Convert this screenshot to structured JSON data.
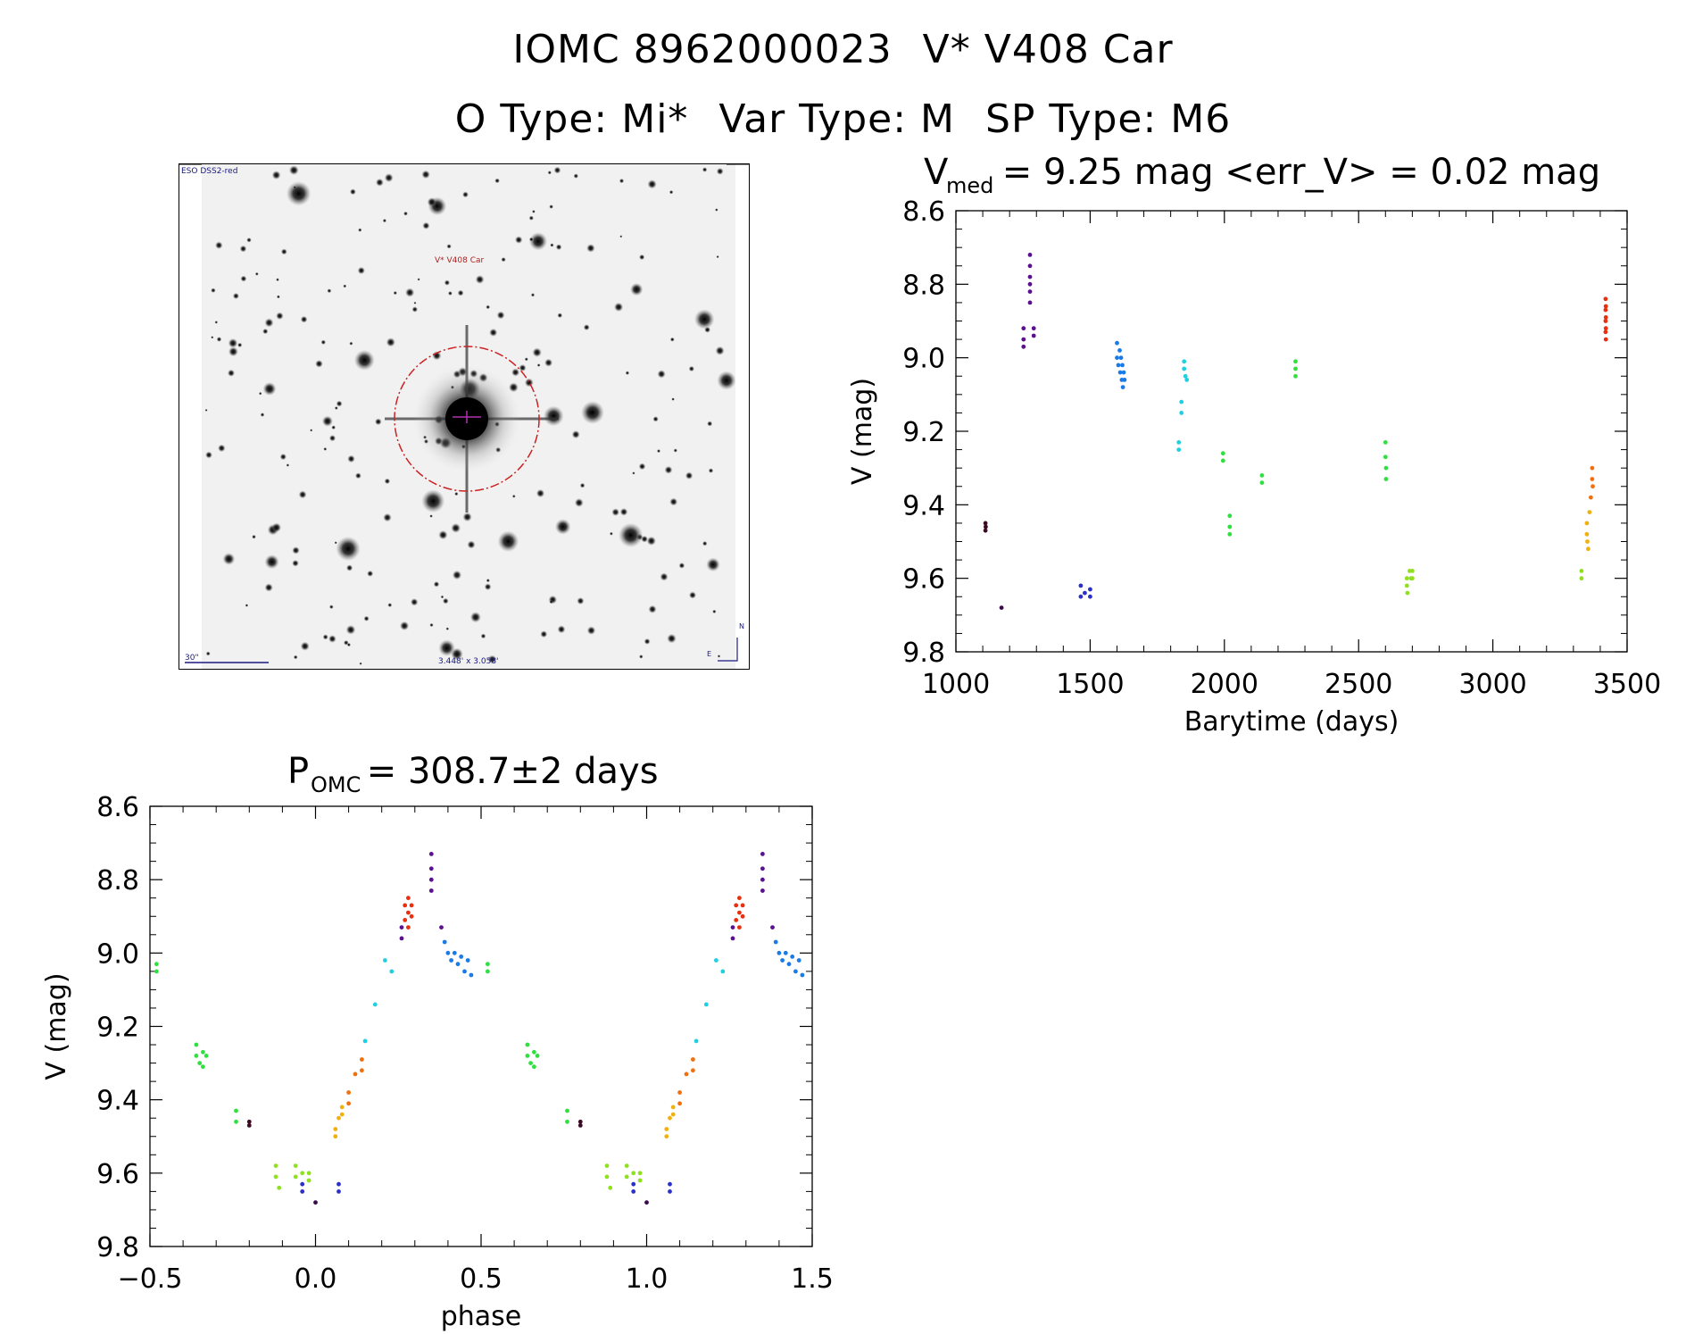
{
  "header": {
    "line1_id": "IOMC 8962000023",
    "line1_name": "V* V408 Car",
    "line2_otype": "O Type: Mi*",
    "line2_vartype": "Var Type: M",
    "line2_sptype": "SP Type: M6"
  },
  "image_panel": {
    "survey_label": "ESO DSS2-red",
    "target_label": "V* V408 Car",
    "scale_label": "30\"",
    "size_label": "3.448' x 3.058'",
    "north_label": "N",
    "east_label": "E",
    "colors": {
      "circle": "#cc2222",
      "labels": "#1a1a80",
      "target": "#b02020"
    }
  },
  "chart_data": [
    {
      "type": "scatter",
      "title_main": "V",
      "title_sub": "med",
      "title_rest": " = 9.25 mag <err_V> = 0.02 mag",
      "xlabel": "Barytime (days)",
      "ylabel": "V (mag)",
      "xlim": [
        1000,
        3500
      ],
      "ylim": [
        8.6,
        9.8
      ],
      "y_inverted": true,
      "xticks": [
        "1000",
        "1500",
        "2000",
        "2500",
        "3000",
        "3500"
      ],
      "yticks": [
        "8.6",
        "8.8",
        "9.0",
        "9.2",
        "9.4",
        "9.6",
        "9.8"
      ],
      "series": [
        {
          "name": "g1",
          "color": "#3d0a25",
          "points": [
            [
              1110,
              9.45
            ],
            [
              1110,
              9.47
            ],
            [
              1111,
              9.46
            ]
          ]
        },
        {
          "name": "g2",
          "color": "#3a0a4a",
          "points": [
            [
              1170,
              9.68
            ]
          ]
        },
        {
          "name": "g3",
          "color": "#5a1090",
          "points": [
            [
              1252,
              8.92
            ],
            [
              1252,
              8.95
            ],
            [
              1252,
              8.97
            ],
            [
              1276,
              8.72
            ],
            [
              1276,
              8.75
            ],
            [
              1276,
              8.78
            ],
            [
              1276,
              8.8
            ],
            [
              1276,
              8.82
            ],
            [
              1276,
              8.85
            ],
            [
              1290,
              8.92
            ],
            [
              1290,
              8.94
            ]
          ]
        },
        {
          "name": "g4",
          "color": "#2a30c8",
          "points": [
            [
              1465,
              9.62
            ],
            [
              1465,
              9.65
            ],
            [
              1480,
              9.64
            ],
            [
              1500,
              9.63
            ],
            [
              1500,
              9.65
            ]
          ]
        },
        {
          "name": "g5",
          "color": "#1a7ae6",
          "points": [
            [
              1600,
              8.96
            ],
            [
              1600,
              9.0
            ],
            [
              1605,
              9.02
            ],
            [
              1610,
              8.98
            ],
            [
              1612,
              9.04
            ],
            [
              1615,
              9.0
            ],
            [
              1618,
              9.06
            ],
            [
              1620,
              9.02
            ],
            [
              1622,
              9.08
            ],
            [
              1625,
              9.04
            ],
            [
              1628,
              9.06
            ]
          ]
        },
        {
          "name": "g6",
          "color": "#20d0e0",
          "points": [
            [
              1830,
              9.23
            ],
            [
              1830,
              9.25
            ],
            [
              1840,
              9.12
            ],
            [
              1840,
              9.15
            ],
            [
              1850,
              9.01
            ],
            [
              1850,
              9.03
            ],
            [
              1855,
              9.05
            ],
            [
              1860,
              9.06
            ]
          ]
        },
        {
          "name": "g7",
          "color": "#30e040",
          "points": [
            [
              1995,
              9.26
            ],
            [
              1995,
              9.28
            ],
            [
              2020,
              9.43
            ],
            [
              2020,
              9.46
            ],
            [
              2020,
              9.48
            ],
            [
              2140,
              9.32
            ],
            [
              2140,
              9.34
            ],
            [
              2265,
              9.01
            ],
            [
              2265,
              9.03
            ],
            [
              2265,
              9.05
            ],
            [
              2600,
              9.23
            ],
            [
              2600,
              9.27
            ],
            [
              2602,
              9.3
            ],
            [
              2602,
              9.33
            ]
          ]
        },
        {
          "name": "g8",
          "color": "#90e020",
          "points": [
            [
              2680,
              9.6
            ],
            [
              2680,
              9.62
            ],
            [
              2682,
              9.64
            ],
            [
              2690,
              9.58
            ],
            [
              2695,
              9.6
            ],
            [
              2700,
              9.58
            ],
            [
              2700,
              9.6
            ],
            [
              3330,
              9.58
            ],
            [
              3330,
              9.6
            ]
          ]
        },
        {
          "name": "g9",
          "color": "#f0b010",
          "points": [
            [
              3350,
              9.45
            ],
            [
              3350,
              9.48
            ],
            [
              3352,
              9.5
            ],
            [
              3355,
              9.52
            ],
            [
              3360,
              9.42
            ]
          ]
        },
        {
          "name": "g10",
          "color": "#f07010",
          "points": [
            [
              3365,
              9.38
            ],
            [
              3370,
              9.3
            ],
            [
              3370,
              9.33
            ],
            [
              3372,
              9.35
            ]
          ]
        },
        {
          "name": "g11",
          "color": "#e83010",
          "points": [
            [
              3420,
              8.84
            ],
            [
              3420,
              8.87
            ],
            [
              3420,
              8.9
            ],
            [
              3420,
              8.93
            ],
            [
              3421,
              8.86
            ],
            [
              3421,
              8.89
            ],
            [
              3421,
              8.92
            ],
            [
              3421,
              8.95
            ]
          ]
        }
      ]
    },
    {
      "type": "scatter",
      "title_main": "P",
      "title_sub": "OMC",
      "title_rest": " = 308.7±2 days",
      "xlabel": "phase",
      "ylabel": "V (mag)",
      "xlim": [
        -0.5,
        1.5
      ],
      "ylim": [
        8.6,
        9.8
      ],
      "y_inverted": true,
      "xticks": [
        "−0.5",
        "0.0",
        "0.5",
        "1.0",
        "1.5"
      ],
      "yticks": [
        "8.6",
        "8.8",
        "9.0",
        "9.2",
        "9.4",
        "9.6",
        "9.8"
      ],
      "series": [
        {
          "name": "ph-green",
          "color": "#30e040",
          "points": [
            [
              -0.48,
              9.03
            ],
            [
              -0.48,
              9.05
            ],
            [
              -0.36,
              9.25
            ],
            [
              -0.36,
              9.28
            ],
            [
              -0.35,
              9.3
            ],
            [
              -0.34,
              9.27
            ],
            [
              -0.34,
              9.31
            ],
            [
              -0.33,
              9.28
            ],
            [
              -0.24,
              9.43
            ],
            [
              -0.24,
              9.46
            ],
            [
              0.52,
              9.03
            ],
            [
              0.52,
              9.05
            ],
            [
              0.64,
              9.25
            ],
            [
              0.64,
              9.28
            ],
            [
              0.65,
              9.3
            ],
            [
              0.66,
              9.27
            ],
            [
              0.66,
              9.31
            ],
            [
              0.67,
              9.28
            ],
            [
              0.76,
              9.43
            ],
            [
              0.76,
              9.46
            ]
          ]
        },
        {
          "name": "ph-dark",
          "color": "#3d0a25",
          "points": [
            [
              -0.2,
              9.46
            ],
            [
              -0.2,
              9.47
            ],
            [
              0.8,
              9.46
            ],
            [
              0.8,
              9.47
            ]
          ]
        },
        {
          "name": "ph-lime",
          "color": "#90e020",
          "points": [
            [
              -0.12,
              9.58
            ],
            [
              -0.12,
              9.61
            ],
            [
              -0.11,
              9.64
            ],
            [
              -0.06,
              9.58
            ],
            [
              -0.06,
              9.61
            ],
            [
              -0.04,
              9.6
            ],
            [
              -0.02,
              9.6
            ],
            [
              -0.02,
              9.62
            ],
            [
              0.88,
              9.58
            ],
            [
              0.88,
              9.61
            ],
            [
              0.89,
              9.64
            ],
            [
              0.94,
              9.58
            ],
            [
              0.94,
              9.61
            ],
            [
              0.96,
              9.6
            ],
            [
              0.98,
              9.6
            ],
            [
              0.98,
              9.62
            ]
          ]
        },
        {
          "name": "ph-blue",
          "color": "#2a30c8",
          "points": [
            [
              -0.04,
              9.63
            ],
            [
              -0.04,
              9.65
            ],
            [
              0.07,
              9.63
            ],
            [
              0.07,
              9.65
            ],
            [
              0.96,
              9.63
            ],
            [
              0.96,
              9.65
            ],
            [
              1.07,
              9.63
            ],
            [
              1.07,
              9.65
            ]
          ]
        },
        {
          "name": "ph-purple-dark",
          "color": "#3a0a4a",
          "points": [
            [
              0.0,
              9.68
            ],
            [
              1.0,
              9.68
            ]
          ]
        },
        {
          "name": "ph-yellow",
          "color": "#f0b010",
          "points": [
            [
              0.06,
              9.48
            ],
            [
              0.06,
              9.5
            ],
            [
              0.07,
              9.45
            ],
            [
              0.08,
              9.42
            ],
            [
              0.08,
              9.44
            ],
            [
              1.06,
              9.48
            ],
            [
              1.06,
              9.5
            ],
            [
              1.07,
              9.45
            ],
            [
              1.08,
              9.42
            ],
            [
              1.08,
              9.44
            ]
          ]
        },
        {
          "name": "ph-orange",
          "color": "#f07010",
          "points": [
            [
              0.1,
              9.38
            ],
            [
              0.1,
              9.41
            ],
            [
              0.12,
              9.33
            ],
            [
              0.14,
              9.29
            ],
            [
              0.14,
              9.32
            ],
            [
              1.1,
              9.38
            ],
            [
              1.1,
              9.41
            ],
            [
              1.12,
              9.33
            ],
            [
              1.14,
              9.29
            ],
            [
              1.14,
              9.32
            ]
          ]
        },
        {
          "name": "ph-cyan",
          "color": "#20d0e0",
          "points": [
            [
              0.15,
              9.24
            ],
            [
              0.18,
              9.14
            ],
            [
              0.21,
              9.02
            ],
            [
              0.23,
              9.05
            ],
            [
              1.15,
              9.24
            ],
            [
              1.18,
              9.14
            ],
            [
              1.21,
              9.02
            ],
            [
              1.23,
              9.05
            ]
          ]
        },
        {
          "name": "ph-violet",
          "color": "#5a1090",
          "points": [
            [
              0.26,
              8.93
            ],
            [
              0.26,
              8.96
            ],
            [
              0.35,
              8.73
            ],
            [
              0.35,
              8.77
            ],
            [
              0.35,
              8.8
            ],
            [
              0.35,
              8.83
            ],
            [
              0.38,
              8.93
            ],
            [
              1.26,
              8.93
            ],
            [
              1.26,
              8.96
            ],
            [
              1.35,
              8.73
            ],
            [
              1.35,
              8.77
            ],
            [
              1.35,
              8.8
            ],
            [
              1.35,
              8.83
            ],
            [
              1.38,
              8.93
            ]
          ]
        },
        {
          "name": "ph-red",
          "color": "#e83010",
          "points": [
            [
              0.27,
              8.87
            ],
            [
              0.27,
              8.91
            ],
            [
              0.28,
              8.85
            ],
            [
              0.28,
              8.89
            ],
            [
              0.28,
              8.93
            ],
            [
              0.29,
              8.87
            ],
            [
              0.29,
              8.9
            ],
            [
              1.27,
              8.87
            ],
            [
              1.27,
              8.91
            ],
            [
              1.28,
              8.85
            ],
            [
              1.28,
              8.89
            ],
            [
              1.28,
              8.93
            ],
            [
              1.29,
              8.87
            ],
            [
              1.29,
              8.9
            ]
          ]
        },
        {
          "name": "ph-azure",
          "color": "#1a7ae6",
          "points": [
            [
              0.39,
              8.97
            ],
            [
              0.4,
              9.0
            ],
            [
              0.41,
              9.02
            ],
            [
              0.42,
              9.0
            ],
            [
              0.43,
              9.03
            ],
            [
              0.44,
              9.01
            ],
            [
              0.45,
              9.05
            ],
            [
              0.46,
              9.02
            ],
            [
              0.47,
              9.06
            ],
            [
              1.39,
              8.97
            ],
            [
              1.4,
              9.0
            ],
            [
              1.41,
              9.02
            ],
            [
              1.42,
              9.0
            ],
            [
              1.43,
              9.03
            ],
            [
              1.44,
              9.01
            ],
            [
              1.45,
              9.05
            ],
            [
              1.46,
              9.02
            ],
            [
              1.47,
              9.06
            ]
          ]
        }
      ]
    }
  ]
}
